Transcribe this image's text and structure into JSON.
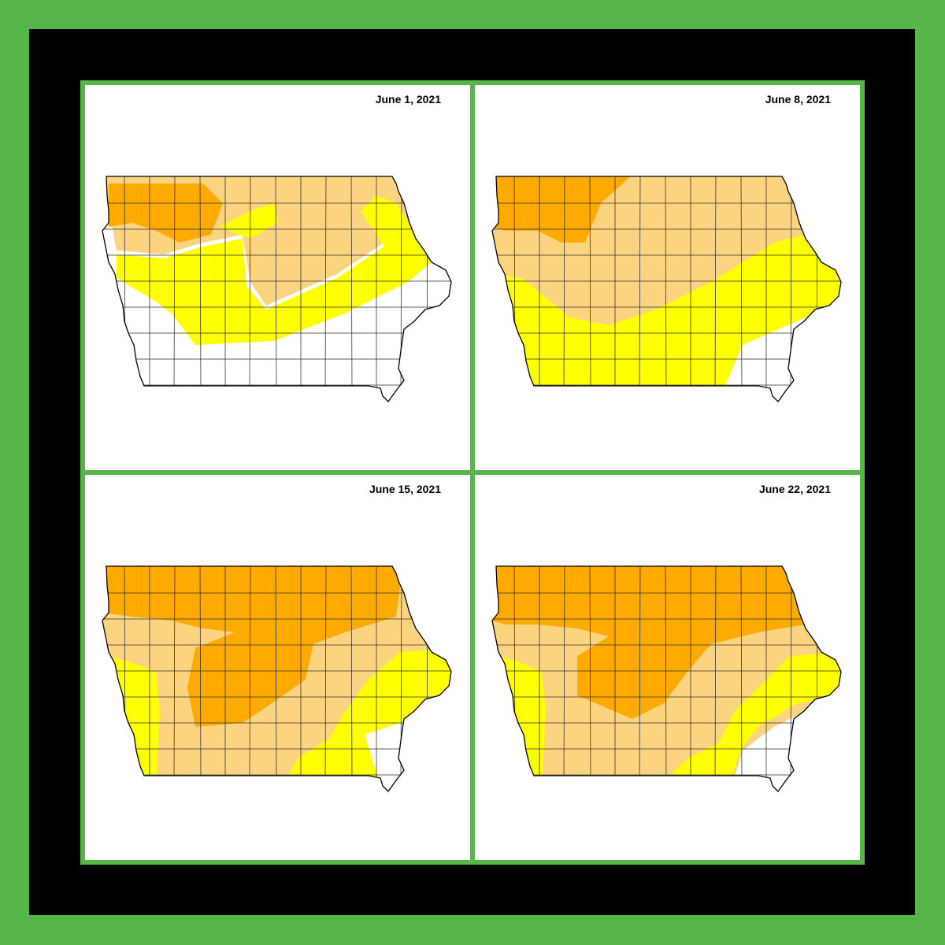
{
  "panels": [
    {
      "date": "June 1, 2021"
    },
    {
      "date": "June 8, 2021"
    },
    {
      "date": "June 15, 2021"
    },
    {
      "date": "June 22, 2021"
    }
  ]
}
